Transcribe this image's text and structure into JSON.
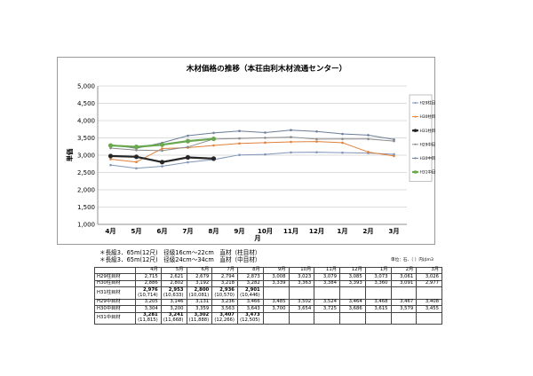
{
  "chart_data": {
    "type": "line",
    "title": "木材価格の推移（本荘由利木材流通センター）",
    "xlabel": "月",
    "ylabel": "単価",
    "categories": [
      "4月",
      "5月",
      "6月",
      "7月",
      "8月",
      "9月",
      "10月",
      "11月",
      "12月",
      "1月",
      "2月",
      "3月"
    ],
    "ylim": [
      1000,
      5000
    ],
    "yticks": [
      "1,000",
      "1,500",
      "2,000",
      "2,500",
      "3,000",
      "3,500",
      "4,000",
      "4,500",
      "5,000"
    ],
    "grid": true,
    "legend_position": "right",
    "series": [
      {
        "name": "H29柱目材",
        "color": "#7f96b8",
        "width": 1,
        "marker": "dot",
        "values": [
          2715,
          2621,
          2679,
          2794,
          2873,
          3008,
          3023,
          3079,
          3085,
          3073,
          3061,
          3026
        ]
      },
      {
        "name": "H30柱目材",
        "color": "#e0803a",
        "width": 1,
        "marker": "dot",
        "values": [
          2886,
          2802,
          3192,
          3218,
          3282,
          3339,
          3363,
          3384,
          3393,
          3360,
          3091,
          2977
        ]
      },
      {
        "name": "H31柱目材",
        "color": "#262626",
        "width": 2.2,
        "marker": "dot",
        "values": [
          2976,
          2953,
          2800,
          2936,
          2901,
          null,
          null,
          null,
          null,
          null,
          null,
          null
        ]
      },
      {
        "name": "H29中目材",
        "color": "#8a8a8a",
        "width": 1,
        "marker": "dot",
        "values": [
          3205,
          3146,
          3131,
          3236,
          3466,
          3485,
          3502,
          3524,
          3464,
          3468,
          3467,
          3408
        ]
      },
      {
        "name": "H30中目材",
        "color": "#6c7e99",
        "width": 1,
        "marker": "dot",
        "values": [
          3304,
          3200,
          3359,
          3563,
          3643,
          3700,
          3654,
          3725,
          3686,
          3615,
          3579,
          3455
        ]
      },
      {
        "name": "H31中目材",
        "color": "#6aa84f",
        "width": 2.2,
        "marker": "dot",
        "values": [
          3281,
          3241,
          3302,
          3407,
          3473,
          null,
          null,
          null,
          null,
          null,
          null,
          null
        ]
      }
    ]
  },
  "notes": [
    "＊長級3．65m(12尺)　径級16cm～22cm　直材（柱目材）",
    "＊長級3．65m(12尺)　径級24cm～34cm　直材（中目材）"
  ],
  "unit_note": "単位：石、（ ）内はm3",
  "table": {
    "header": [
      "4月",
      "5月",
      "6月",
      "7月",
      "8月",
      "9月",
      "10月",
      "11月",
      "12月",
      "1月",
      "2月",
      "3月"
    ],
    "rows": [
      {
        "label": "H29柱目材",
        "tall": false,
        "cells": [
          "2,715",
          "2,621",
          "2,679",
          "2,794",
          "2,873",
          "3,008",
          "3,023",
          "3,079",
          "3,085",
          "3,073",
          "3,061",
          "3,026"
        ]
      },
      {
        "label": "H30柱目材",
        "tall": false,
        "cells": [
          "2,886",
          "2,802",
          "3,192",
          "3,218",
          "3,282",
          "3,339",
          "3,363",
          "3,384",
          "3,393",
          "3,360",
          "3,091",
          "2,977"
        ]
      },
      {
        "label": "H31柱目材",
        "tall": true,
        "cells": [
          "2,976",
          "2,953",
          "2,800",
          "2,936",
          "2,901",
          "",
          "",
          "",
          "",
          "",
          "",
          ""
        ],
        "subs": [
          "(10,714)",
          "(10,633)",
          "(10,081)",
          "(10,570)",
          "(10,446)",
          "",
          "",
          "",
          "",
          "",
          "",
          ""
        ]
      },
      {
        "label": "H29中目材",
        "tall": false,
        "cells": [
          "3,205",
          "3,146",
          "3,131",
          "3,236",
          "3,466",
          "3,485",
          "3,502",
          "3,524",
          "3,464",
          "3,468",
          "3,467",
          "3,408"
        ]
      },
      {
        "label": "H30中目材",
        "tall": false,
        "cells": [
          "3,304",
          "3,200",
          "3,359",
          "3,563",
          "3,643",
          "3,700",
          "3,654",
          "3,725",
          "3,686",
          "3,615",
          "3,579",
          "3,455"
        ]
      },
      {
        "label": "H31中目材",
        "tall": true,
        "cells": [
          "3,281",
          "3,241",
          "3,302",
          "3,407",
          "3,473",
          "",
          "",
          "",
          "",
          "",
          "",
          ""
        ],
        "subs": [
          "(11,815)",
          "(11,668)",
          "(11,888)",
          "(12,266)",
          "(12,505)",
          "",
          "",
          "",
          "",
          "",
          "",
          ""
        ]
      }
    ]
  }
}
